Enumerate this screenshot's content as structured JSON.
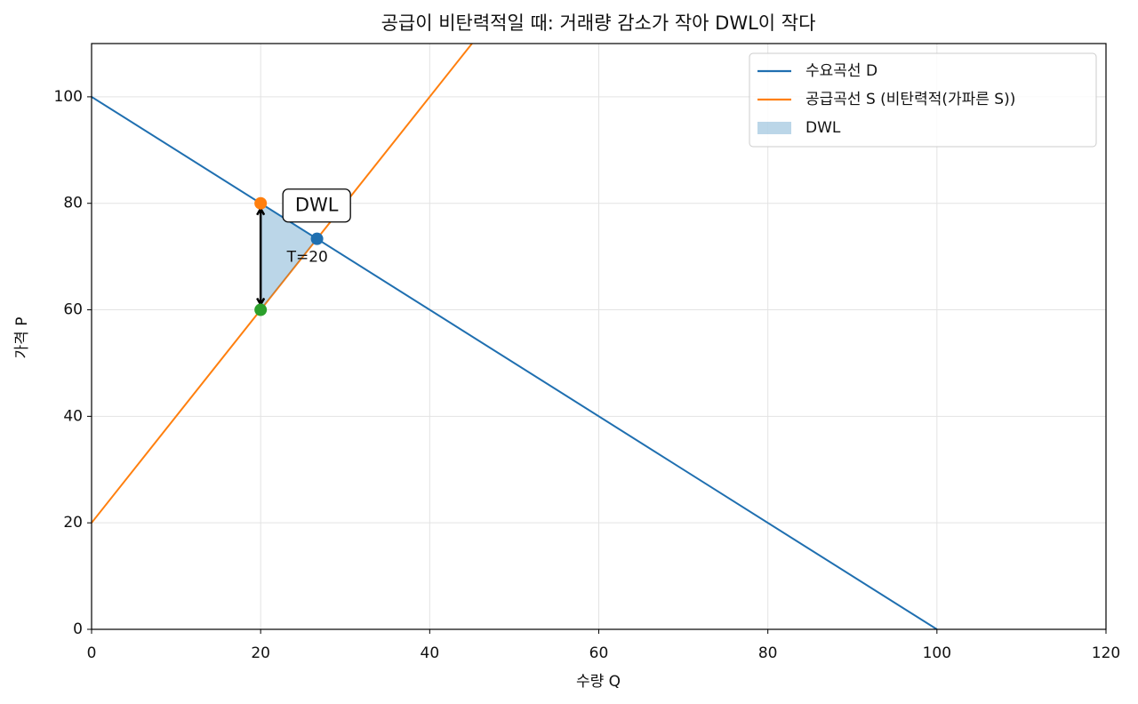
{
  "chart_data": {
    "type": "line",
    "title": "공급이 비탄력적일 때: 거래량 감소가 작아 DWL이 작다",
    "xlabel": "수량 Q",
    "ylabel": "가격 P",
    "xlim": [
      0,
      120
    ],
    "ylim": [
      0,
      110
    ],
    "xticks": [
      0,
      20,
      40,
      60,
      80,
      100,
      120
    ],
    "yticks": [
      0,
      20,
      40,
      60,
      80,
      100
    ],
    "grid": true,
    "legend": "upper right",
    "series": [
      {
        "name": "수요곡선 D",
        "type": "line",
        "color": "#1f6fb0",
        "x": [
          0,
          100
        ],
        "y": [
          100,
          0
        ]
      },
      {
        "name": "공급곡선 S (비탄력적(가파른 S))",
        "type": "line",
        "color": "#ff7f0e",
        "x": [
          0,
          45
        ],
        "y": [
          20,
          110
        ]
      },
      {
        "name": "DWL",
        "type": "area",
        "color": "#1f77b4",
        "opacity": 0.3,
        "x": [
          20,
          26.67,
          20
        ],
        "y": [
          80,
          73.33,
          60
        ]
      }
    ],
    "points": [
      {
        "x": 20,
        "y": 80,
        "color": "#ff7f0e"
      },
      {
        "x": 26.67,
        "y": 73.33,
        "color": "#1f6fb0"
      },
      {
        "x": 20,
        "y": 60,
        "color": "#2ca02c"
      }
    ],
    "annotations": [
      {
        "text": "DWL"
      },
      {
        "text": "T=20"
      }
    ]
  }
}
